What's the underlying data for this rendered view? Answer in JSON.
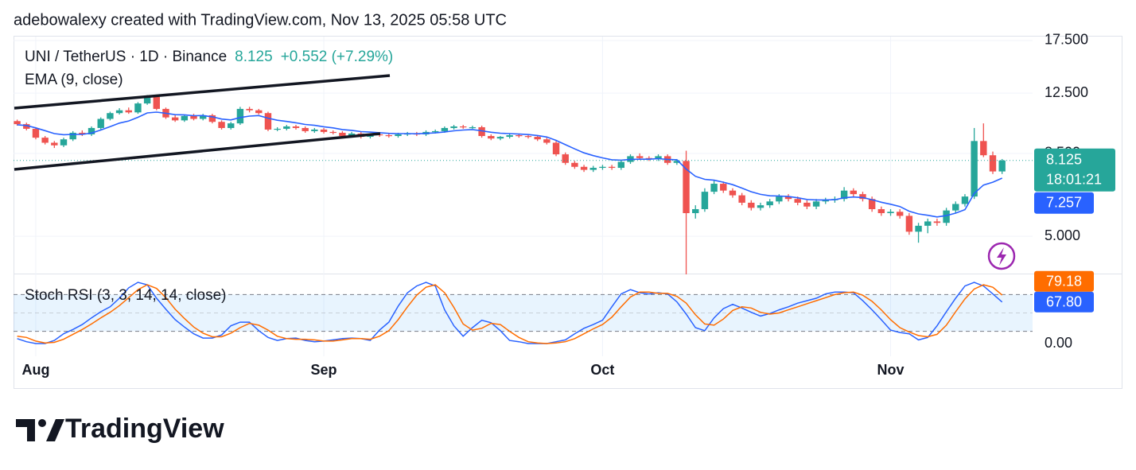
{
  "header": "adebowalexy created with TradingView.com, Nov 13, 2025 05:58 UTC",
  "logo_text": "TradingView",
  "chart_data": [
    {
      "type": "candlestick",
      "title": "UNI / TetherUS · 1D · Binance",
      "change": "+0.552 (+7.29%)",
      "countdown": "18:01:21",
      "log_scale": true,
      "up_color": "#26a69a",
      "down_color": "#ef5350",
      "categories": [
        null,
        null,
        "Aug",
        null,
        null,
        null,
        null,
        null,
        null,
        null,
        null,
        null,
        null,
        null,
        null,
        null,
        null,
        null,
        null,
        null,
        null,
        null,
        null,
        null,
        null,
        null,
        null,
        null,
        null,
        null,
        null,
        null,
        null,
        "Sep",
        null,
        null,
        null,
        null,
        null,
        null,
        null,
        null,
        null,
        null,
        null,
        null,
        null,
        null,
        null,
        null,
        null,
        null,
        null,
        null,
        null,
        null,
        null,
        null,
        null,
        null,
        null,
        null,
        null,
        "Oct",
        null,
        null,
        null,
        null,
        null,
        null,
        null,
        null,
        null,
        null,
        null,
        null,
        null,
        null,
        null,
        null,
        null,
        null,
        null,
        null,
        null,
        null,
        null,
        null,
        null,
        null,
        null,
        null,
        null,
        null,
        "Nov",
        null,
        null,
        null,
        null,
        null,
        null,
        null,
        null,
        null,
        null,
        null,
        null
      ],
      "open": [
        10.45,
        10.25,
        9.95,
        9.4,
        9.1,
        8.95,
        9.3,
        9.7,
        9.6,
        10.0,
        10.6,
        11.0,
        11.2,
        11.05,
        11.7,
        12.2,
        11.3,
        10.7,
        10.5,
        10.8,
        10.6,
        10.85,
        10.4,
        10.0,
        10.3,
        11.3,
        11.2,
        11.0,
        9.9,
        9.95,
        10.1,
        10.0,
        9.8,
        9.9,
        9.75,
        9.7,
        9.5,
        9.65,
        9.45,
        9.6,
        9.55,
        9.5,
        9.6,
        9.65,
        9.6,
        9.75,
        9.8,
        10.0,
        10.1,
        10.05,
        10.05,
        9.5,
        9.35,
        9.45,
        9.55,
        9.5,
        9.45,
        9.3,
        9.1,
        8.45,
        8.0,
        7.8,
        7.65,
        7.75,
        7.8,
        7.75,
        8.05,
        8.35,
        8.25,
        8.2,
        8.35,
        8.0,
        8.1,
        5.8,
        5.95,
        6.65,
        7.0,
        6.7,
        6.5,
        6.2,
        6.0,
        6.1,
        6.25,
        6.45,
        6.35,
        6.2,
        6.05,
        6.25,
        6.3,
        6.35,
        6.7,
        6.55,
        6.35,
        5.95,
        5.8,
        5.85,
        5.7,
        5.15,
        5.35,
        5.5,
        5.45,
        5.9,
        6.15,
        6.45,
        9.2,
        8.4,
        7.573
      ],
      "high": [
        10.55,
        10.35,
        10.05,
        9.5,
        9.2,
        9.4,
        9.8,
        9.85,
        10.1,
        10.7,
        11.1,
        11.35,
        11.4,
        11.8,
        12.35,
        12.25,
        11.4,
        10.85,
        10.9,
        10.95,
        10.95,
        10.95,
        10.5,
        10.4,
        11.45,
        11.45,
        11.3,
        11.1,
        10.05,
        10.2,
        10.2,
        10.1,
        10.0,
        10.0,
        9.85,
        9.8,
        9.75,
        9.75,
        9.65,
        9.7,
        9.65,
        9.7,
        9.75,
        9.75,
        9.85,
        9.9,
        10.1,
        10.2,
        10.2,
        10.15,
        10.15,
        9.6,
        9.5,
        9.65,
        9.65,
        9.6,
        9.55,
        9.4,
        9.2,
        8.55,
        8.1,
        7.9,
        7.85,
        7.9,
        7.9,
        8.15,
        8.45,
        8.5,
        8.35,
        8.45,
        8.45,
        8.2,
        8.65,
        6.1,
        6.8,
        7.15,
        7.1,
        6.8,
        6.6,
        6.3,
        6.2,
        6.35,
        6.55,
        6.55,
        6.45,
        6.3,
        6.35,
        6.4,
        6.45,
        6.85,
        6.8,
        6.65,
        6.45,
        6.05,
        5.95,
        5.95,
        5.8,
        5.45,
        5.6,
        5.6,
        6.0,
        6.25,
        6.55,
        10.0,
        10.3,
        8.6,
        8.2
      ],
      "low": [
        10.15,
        9.85,
        9.3,
        9.0,
        8.8,
        8.85,
        9.2,
        9.5,
        9.5,
        9.9,
        10.5,
        10.9,
        10.95,
        10.95,
        11.6,
        11.2,
        10.6,
        10.4,
        10.4,
        10.5,
        10.5,
        10.3,
        9.9,
        9.9,
        10.2,
        11.05,
        10.9,
        9.8,
        9.8,
        9.85,
        9.9,
        9.7,
        9.7,
        9.65,
        9.6,
        9.4,
        9.4,
        9.35,
        9.35,
        9.45,
        9.4,
        9.4,
        9.5,
        9.5,
        9.5,
        9.65,
        9.7,
        9.9,
        9.95,
        9.95,
        9.4,
        9.25,
        9.25,
        9.35,
        9.4,
        9.35,
        9.2,
        9.0,
        8.35,
        7.9,
        7.7,
        7.55,
        7.55,
        7.65,
        7.65,
        7.65,
        7.95,
        8.15,
        8.1,
        8.1,
        7.9,
        7.9,
        3.9,
        5.6,
        5.85,
        6.55,
        6.6,
        6.4,
        6.1,
        5.9,
        5.9,
        6.0,
        6.15,
        6.25,
        6.1,
        5.95,
        5.95,
        6.15,
        6.2,
        6.25,
        6.45,
        6.25,
        5.85,
        5.7,
        5.7,
        5.6,
        5.05,
        4.8,
        5.1,
        5.35,
        5.35,
        5.8,
        6.05,
        6.35,
        8.3,
        7.45,
        7.45
      ],
      "close": [
        10.25,
        9.95,
        9.4,
        9.1,
        8.95,
        9.3,
        9.7,
        9.6,
        10.0,
        10.6,
        11.0,
        11.2,
        11.05,
        11.7,
        12.2,
        11.3,
        10.7,
        10.5,
        10.8,
        10.6,
        10.85,
        10.4,
        10.0,
        10.3,
        11.3,
        11.2,
        11.0,
        9.9,
        9.95,
        10.1,
        10.0,
        9.8,
        9.9,
        9.75,
        9.7,
        9.5,
        9.65,
        9.45,
        9.6,
        9.55,
        9.5,
        9.6,
        9.65,
        9.6,
        9.75,
        9.8,
        10.0,
        10.1,
        10.05,
        10.05,
        9.5,
        9.35,
        9.45,
        9.55,
        9.5,
        9.45,
        9.3,
        9.1,
        8.45,
        8.0,
        7.8,
        7.65,
        7.75,
        7.8,
        7.75,
        8.05,
        8.35,
        8.25,
        8.2,
        8.35,
        8.0,
        8.1,
        5.8,
        5.95,
        6.65,
        7.0,
        6.7,
        6.5,
        6.2,
        6.0,
        6.1,
        6.25,
        6.45,
        6.35,
        6.2,
        6.05,
        6.25,
        6.3,
        6.35,
        6.7,
        6.55,
        6.35,
        5.95,
        5.8,
        5.85,
        5.7,
        5.15,
        5.35,
        5.5,
        5.45,
        5.9,
        6.15,
        6.45,
        9.2,
        8.4,
        7.573,
        8.125
      ],
      "overlays": [
        {
          "name": "EMA (9, close)",
          "color": "#2962ff",
          "values": [
            10.21,
            10.16,
            10.01,
            9.83,
            9.65,
            9.58,
            9.6,
            9.6,
            9.68,
            9.87,
            10.09,
            10.32,
            10.46,
            10.71,
            11.01,
            11.07,
            10.99,
            10.89,
            10.88,
            10.82,
            10.83,
            10.74,
            10.59,
            10.53,
            10.69,
            10.79,
            10.83,
            10.65,
            10.51,
            10.43,
            10.34,
            10.23,
            10.17,
            10.08,
            10.01,
            9.9,
            9.85,
            9.77,
            9.74,
            9.7,
            9.66,
            9.65,
            9.65,
            9.64,
            9.66,
            9.69,
            9.75,
            9.82,
            9.87,
            9.9,
            9.82,
            9.73,
            9.67,
            9.65,
            9.62,
            9.59,
            9.53,
            9.44,
            9.24,
            8.99,
            8.75,
            8.53,
            8.38,
            8.26,
            8.16,
            8.14,
            8.18,
            8.19,
            8.19,
            8.22,
            8.18,
            8.16,
            7.69,
            7.34,
            7.2,
            7.16,
            7.07,
            6.96,
            6.81,
            6.65,
            6.54,
            6.48,
            6.47,
            6.45,
            6.4,
            6.33,
            6.31,
            6.31,
            6.32,
            6.4,
            6.43,
            6.41,
            6.32,
            6.22,
            6.14,
            6.05,
            5.87,
            5.77,
            5.72,
            5.66,
            5.71,
            5.8,
            5.93,
            6.58,
            6.94,
            7.07,
            7.257
          ]
        }
      ],
      "ylim": [
        3.9,
        18.04
      ],
      "yticks": [
        {
          "value": 17.5,
          "label": "17.500"
        },
        {
          "value": 12.5,
          "label": "12.500"
        },
        {
          "value": 8.5,
          "label": "8.500"
        },
        {
          "value": 5,
          "label": "5.000"
        }
      ],
      "grid": true
    },
    {
      "type": "line",
      "title": "Stoch RSI (3, 3, 14, 14, close)",
      "ylim": [
        0,
        100
      ],
      "yticks": [
        {
          "value": 0,
          "label": "0.00"
        }
      ],
      "bands": [
        20,
        80
      ],
      "midline": 50,
      "band_color": "#2196f3",
      "series": [
        {
          "color": "#2962ff",
          "last_label": "67.80",
          "values": [
            8,
            3,
            0,
            0,
            5,
            16,
            23,
            31,
            42,
            52,
            60,
            74,
            91,
            100,
            96,
            74,
            56,
            39,
            27,
            16,
            9,
            9,
            14,
            29,
            35,
            35,
            21,
            10,
            5,
            8,
            9,
            5,
            3,
            4,
            6,
            8,
            9,
            8,
            5,
            22,
            35,
            61,
            83,
            94,
            100,
            94,
            55,
            29,
            12,
            26,
            38,
            34,
            21,
            5,
            3,
            0,
            0,
            0,
            3,
            6,
            16,
            25,
            31,
            38,
            60,
            81,
            88,
            83,
            81,
            83,
            81,
            68,
            48,
            26,
            21,
            42,
            57,
            64,
            58,
            51,
            45,
            49,
            55,
            60,
            66,
            70,
            74,
            81,
            84,
            84,
            83,
            70,
            55,
            39,
            22,
            18,
            16,
            6,
            10,
            29,
            52,
            74,
            94,
            100,
            94,
            81,
            67.8
          ]
        },
        {
          "color": "#ff6d00",
          "last_label": "79.18",
          "values": [
            12,
            10,
            4,
            1,
            2,
            7,
            15,
            23,
            32,
            42,
            51,
            62,
            75,
            88,
            96,
            90,
            75,
            56,
            41,
            27,
            17,
            11,
            11,
            17,
            26,
            33,
            30,
            22,
            12,
            8,
            7,
            7,
            6,
            4,
            4,
            6,
            8,
            8,
            7,
            12,
            21,
            39,
            60,
            79,
            92,
            96,
            83,
            59,
            32,
            22,
            25,
            33,
            31,
            20,
            10,
            3,
            1,
            0,
            1,
            3,
            8,
            16,
            24,
            31,
            43,
            60,
            76,
            84,
            84,
            82,
            82,
            77,
            66,
            47,
            32,
            30,
            40,
            54,
            60,
            58,
            51,
            48,
            50,
            55,
            60,
            65,
            70,
            75,
            80,
            83,
            84,
            79,
            69,
            55,
            39,
            26,
            19,
            13,
            11,
            15,
            30,
            52,
            73,
            89,
            96,
            92,
            79.18
          ]
        }
      ]
    }
  ]
}
